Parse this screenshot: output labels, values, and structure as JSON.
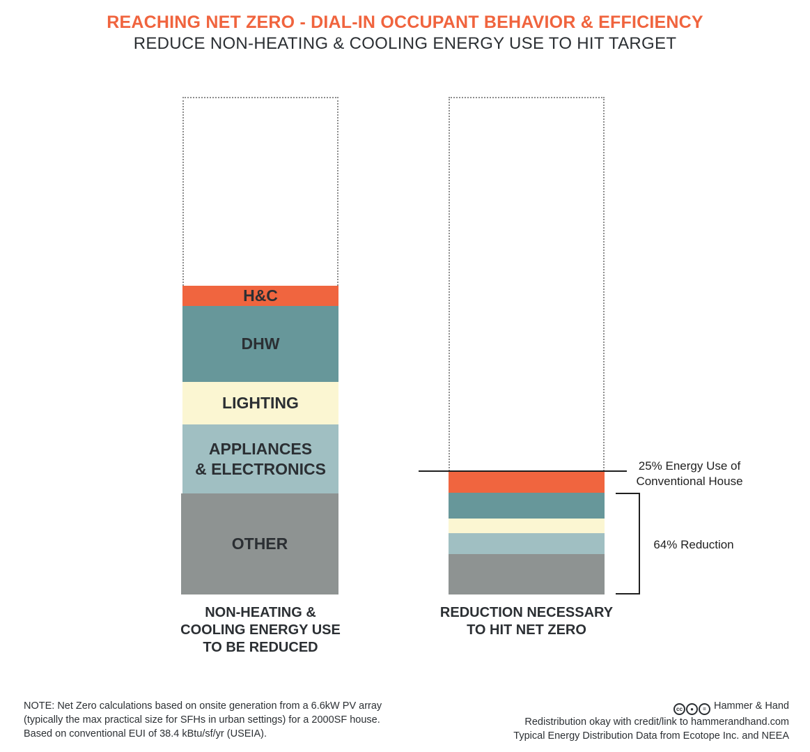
{
  "header": {
    "title": "REACHING NET ZERO - DIAL-IN OCCUPANT BEHAVIOR & EFFICIENCY",
    "subtitle": "REDUCE NON-HEATING & COOLING ENERGY USE TO HIT TARGET"
  },
  "colors": {
    "title": "#f0643e",
    "hc": "#f0653f",
    "dhw": "#67979a",
    "lighting": "#fbf6d2",
    "appliances": "#a0bfc2",
    "other": "#8e9392"
  },
  "chart_data": {
    "type": "bar",
    "stacked": true,
    "categories": [
      "NON-HEATING & COOLING ENERGY USE TO BE REDUCED",
      "REDUCTION NECESSARY TO HIT NET ZERO"
    ],
    "series": [
      {
        "name": "OTHER",
        "values": [
          20.3,
          8.1
        ]
      },
      {
        "name": "APPLIANCES & ELECTRONICS",
        "values": [
          14.0,
          4.2
        ]
      },
      {
        "name": "LIGHTING",
        "values": [
          8.8,
          3.0
        ]
      },
      {
        "name": "DHW",
        "values": [
          15.4,
          5.3
        ]
      },
      {
        "name": "H&C",
        "values": [
          4.1,
          4.3
        ]
      }
    ],
    "total_capacity": 100,
    "annotations": [
      "25% Energy Use of Conventional House",
      "64% Reduction"
    ]
  },
  "bars": {
    "left": {
      "caption_lines": [
        "NON-HEATING &",
        "COOLING ENERGY USE",
        "TO BE REDUCED"
      ],
      "labels": {
        "hc": "H&C",
        "dhw": "DHW",
        "lighting": "LIGHTING",
        "appliances_line1": "APPLIANCES",
        "appliances_line2": "& ELECTRONICS",
        "other": "OTHER"
      }
    },
    "right": {
      "caption_lines": [
        "REDUCTION NECESSARY",
        "TO HIT NET ZERO"
      ]
    }
  },
  "annotations": {
    "target_line1": "25% Energy Use of",
    "target_line2": "Conventional House",
    "reduction": "64% Reduction"
  },
  "footer": {
    "note_lines": [
      "NOTE: Net Zero calculations based on onsite generation from a 6.6kW PV array",
      "(typically the max practical size for SFHs in urban settings) for a 2000SF house.",
      "Based on conventional EUI of 38.4 kBtu/sf/yr (USEIA)."
    ],
    "license_icons": [
      "cc",
      "by",
      "nd"
    ],
    "credit_lines": [
      "Hammer & Hand",
      "Redistribution okay with credit/link to hammerandhand.com",
      "Typical Energy Distribution Data from Ecotope Inc. and NEEA"
    ]
  }
}
